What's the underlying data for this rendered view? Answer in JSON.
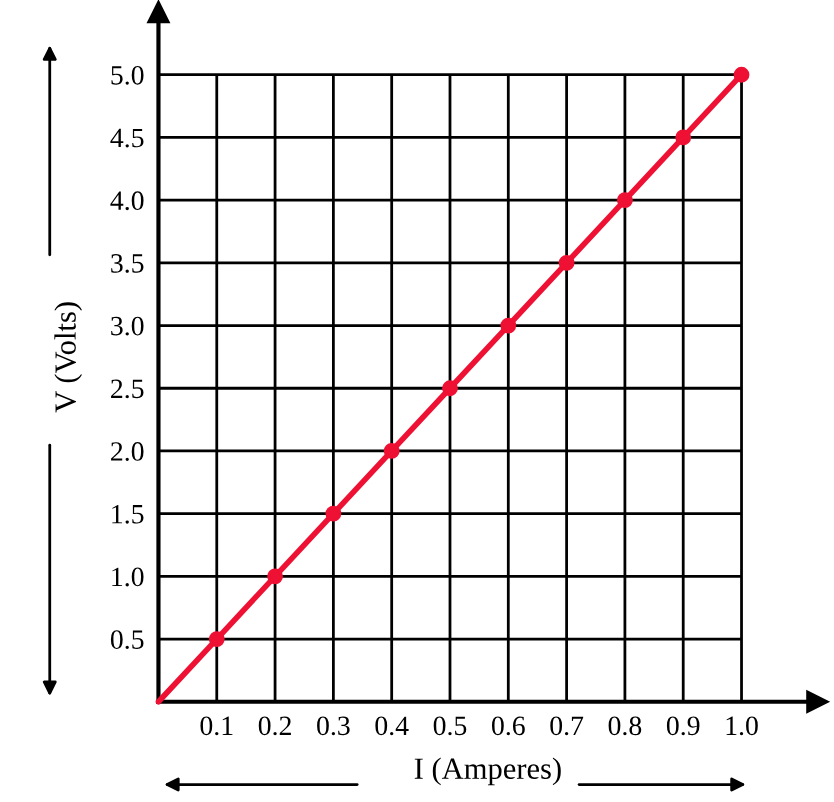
{
  "chart_data": {
    "type": "line",
    "xlabel": "I (Amperes)",
    "ylabel": "V (Volts)",
    "series": [
      {
        "color": "#ee1133",
        "marker": "none",
        "x": [
          0,
          0.1,
          0.2,
          0.3,
          0.4,
          0.5,
          0.6,
          0.7,
          0.8,
          0.9,
          1.0
        ],
        "values": [
          0,
          0.5,
          1.0,
          1.5,
          2.0,
          2.5,
          3.0,
          3.5,
          4.0,
          4.5,
          5.0
        ]
      },
      {
        "type": "scatter",
        "color": "#ee1133",
        "marker": "circle",
        "x": [
          0.1,
          0.2,
          0.3,
          0.4,
          0.5,
          0.6,
          0.7,
          0.8,
          0.9,
          1.0
        ],
        "values": [
          0.5,
          1.0,
          1.5,
          2.0,
          2.5,
          3.0,
          3.5,
          4.0,
          4.5,
          5.0
        ]
      }
    ],
    "xlim": [
      0,
      1.13
    ],
    "ylim": [
      0,
      5.5
    ],
    "xticks": [
      0.1,
      0.2,
      0.3,
      0.4,
      0.5,
      0.6,
      0.7,
      0.8,
      0.9,
      {
        "value": 1,
        "label": "1.0"
      }
    ],
    "yticks": [
      0.5,
      {
        "value": 1,
        "label": "1.0"
      },
      1.5,
      {
        "value": 2,
        "label": "2.0"
      },
      2.5,
      {
        "value": 3,
        "label": "3.0"
      },
      3.5,
      {
        "value": 4,
        "label": "4.0"
      },
      4.5,
      {
        "value": 5,
        "label": "5.0"
      }
    ],
    "grid": true,
    "legend": false
  }
}
